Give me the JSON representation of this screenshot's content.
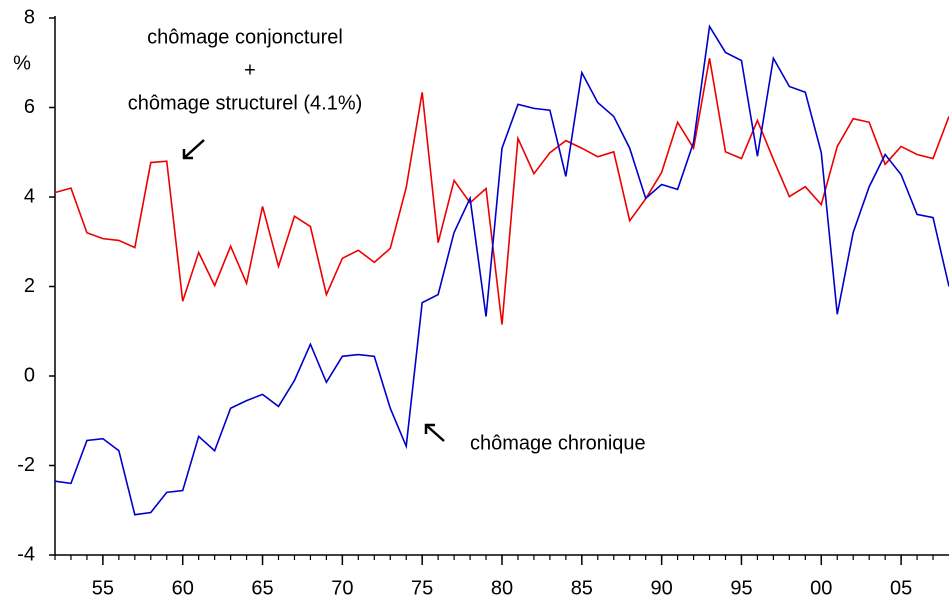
{
  "chart_data": {
    "type": "line",
    "y_label": "%",
    "annotations": [
      "chômage conjoncturel",
      "+",
      "chômage structurel (4.1%)",
      "chômage chronique"
    ],
    "x": [
      52,
      53,
      54,
      55,
      56,
      57,
      58,
      59,
      60,
      61,
      62,
      63,
      64,
      65,
      66,
      67,
      68,
      69,
      70,
      71,
      72,
      73,
      74,
      75,
      76,
      77,
      78,
      79,
      80,
      81,
      82,
      83,
      84,
      85,
      86,
      87,
      88,
      89,
      90,
      91,
      92,
      93,
      94,
      95,
      96,
      97,
      98,
      99,
      100,
      101,
      102,
      103,
      104,
      105,
      106,
      107,
      108
    ],
    "series": [
      {
        "color": "#ee0000",
        "values": [
          4.1,
          4.2,
          3.2,
          3.07,
          3.03,
          2.87,
          4.77,
          4.8,
          1.67,
          2.76,
          2.02,
          2.9,
          2.07,
          3.79,
          2.45,
          3.57,
          3.34,
          1.82,
          2.63,
          2.81,
          2.54,
          2.85,
          4.21,
          6.34,
          2.98,
          4.37,
          3.87,
          4.19,
          1.15,
          5.31,
          4.52,
          4.99,
          5.26,
          5.09,
          4.9,
          5.01,
          3.47,
          3.96,
          4.55,
          5.67,
          5.09,
          7.1,
          5.01,
          4.86,
          5.71,
          4.84,
          4.01,
          4.23,
          3.83,
          5.13,
          5.75,
          5.67,
          4.73,
          5.13,
          4.95,
          4.86,
          5.8
        ]
      },
      {
        "color": "#0000cc",
        "values": [
          -2.35,
          -2.4,
          -1.44,
          -1.4,
          -1.67,
          -3.1,
          -3.05,
          -2.6,
          -2.56,
          -1.35,
          -1.67,
          -0.72,
          -0.55,
          -0.41,
          -0.68,
          -0.1,
          0.71,
          -0.14,
          0.44,
          0.48,
          0.44,
          -0.72,
          -1.57,
          1.64,
          1.82,
          3.21,
          3.97,
          1.33,
          5.09,
          6.07,
          5.98,
          5.94,
          4.46,
          6.78,
          6.11,
          5.8,
          5.09,
          3.97,
          4.28,
          4.17,
          5.22,
          7.81,
          7.23,
          7.05,
          4.91,
          7.1,
          6.47,
          6.34,
          4.99,
          1.38,
          3.21,
          4.23,
          4.95,
          4.5,
          3.61,
          3.54,
          2.0
        ]
      }
    ],
    "xlim": [
      52,
      107.9
    ],
    "xticks": [
      55,
      60,
      65,
      70,
      75,
      80,
      85,
      90,
      95,
      {
        "value": 100,
        "label": "00"
      },
      {
        "value": 105,
        "label": "05"
      }
    ],
    "ylim": [
      -4,
      8
    ],
    "yticks": [
      -4,
      -2,
      0,
      2,
      4,
      6,
      8
    ]
  }
}
